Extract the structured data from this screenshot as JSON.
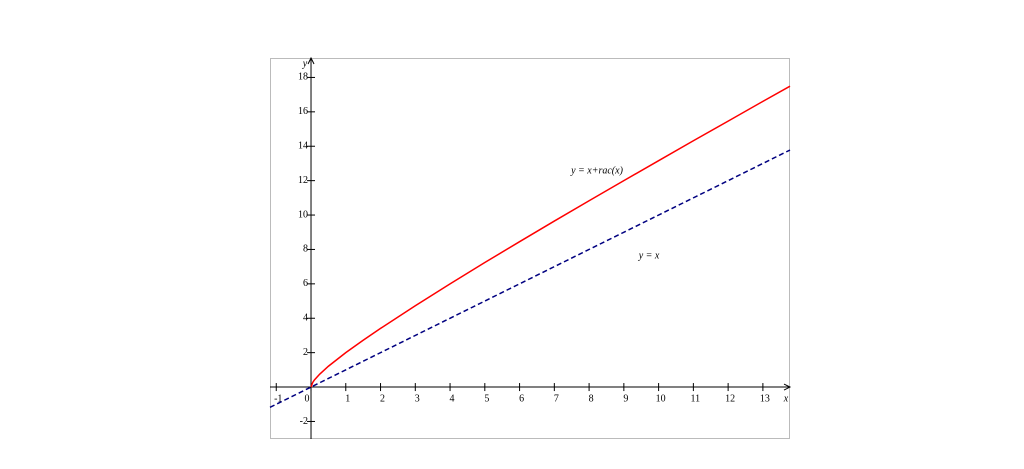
{
  "chart_data": {
    "type": "line",
    "x_label": "x",
    "y_label": "y",
    "xlim": [
      -1.18,
      13.78
    ],
    "ylim": [
      -3.02,
      19.13
    ],
    "xticks": [
      -1,
      0,
      1,
      2,
      3,
      4,
      5,
      6,
      7,
      8,
      9,
      10,
      11,
      12,
      13
    ],
    "yticks": [
      -2,
      2,
      4,
      6,
      8,
      10,
      12,
      14,
      16,
      18
    ],
    "series": [
      {
        "color": "#ff0000",
        "dash": false,
        "x": [
          0,
          0.05,
          0.1,
          0.25,
          0.5,
          1,
          1.5,
          2,
          3,
          4,
          5,
          6,
          7,
          8,
          9,
          10,
          11,
          12,
          13,
          13.78
        ],
        "values": [
          0,
          0.27,
          0.42,
          0.75,
          1.21,
          2,
          2.72,
          3.41,
          4.73,
          6,
          7.24,
          8.45,
          9.65,
          10.83,
          12,
          13.16,
          14.32,
          15.46,
          16.61,
          17.49
        ]
      },
      {
        "color": "#000080",
        "dash": true,
        "x": [
          -1.18,
          13.78
        ],
        "values": [
          -1.18,
          13.78
        ]
      }
    ],
    "annotations": [
      {
        "text": "y = x+rac(x)"
      },
      {
        "text": "y = x"
      }
    ]
  }
}
